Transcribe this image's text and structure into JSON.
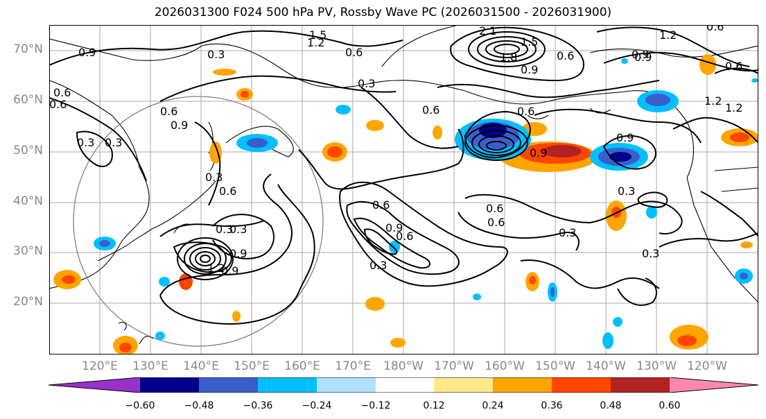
{
  "title": "2026031300 F024 500 hPa PV, Rossby Wave PC (2026031500 - 2026031900)",
  "latitude_labels": [
    "70°N",
    "60°N",
    "50°N",
    "40°N",
    "30°N",
    "20°N"
  ],
  "longitude_labels": [
    "120°E",
    "130°E",
    "140°E",
    "150°E",
    "160°E",
    "170°E",
    "180°W",
    "170°W",
    "160°W",
    "150°W",
    "140°W",
    "130°W",
    "120°W"
  ],
  "colorbar": {
    "ticks": [
      "−0.60",
      "−0.48",
      "−0.36",
      "−0.24",
      "−0.12",
      "0.12",
      "0.24",
      "0.36",
      "0.48",
      "0.60"
    ],
    "colors": [
      "#9932cc",
      "#00008b",
      "#3a5fcd",
      "#00bfff",
      "#b0e2ff",
      "#ffffff",
      "#ffe88a",
      "#ffa500",
      "#ff4500",
      "#b22222",
      "#ff88b0"
    ]
  },
  "contour_labels": [
    "0.9",
    "0.3",
    "1.5",
    "1.2",
    "0.6",
    "0.3",
    "0.6",
    "0.3",
    "0.6",
    "0.9",
    "0.3",
    "0.6",
    "0.3",
    "1.2",
    "2.1",
    "1.5",
    "1.8",
    "0.9",
    "0.6",
    "0.9",
    "0.6",
    "1.2",
    "0.9",
    "0.6",
    "0.6",
    "0.9",
    "0.6",
    "0.3",
    "0.6",
    "0.9",
    "0.9",
    "0.3",
    "0.3",
    "0.3",
    "0.6",
    "1.2",
    "0.3",
    "0.3",
    "0.6",
    "0.9",
    "0.6",
    "0.6",
    "1.2",
    "0.9"
  ]
}
